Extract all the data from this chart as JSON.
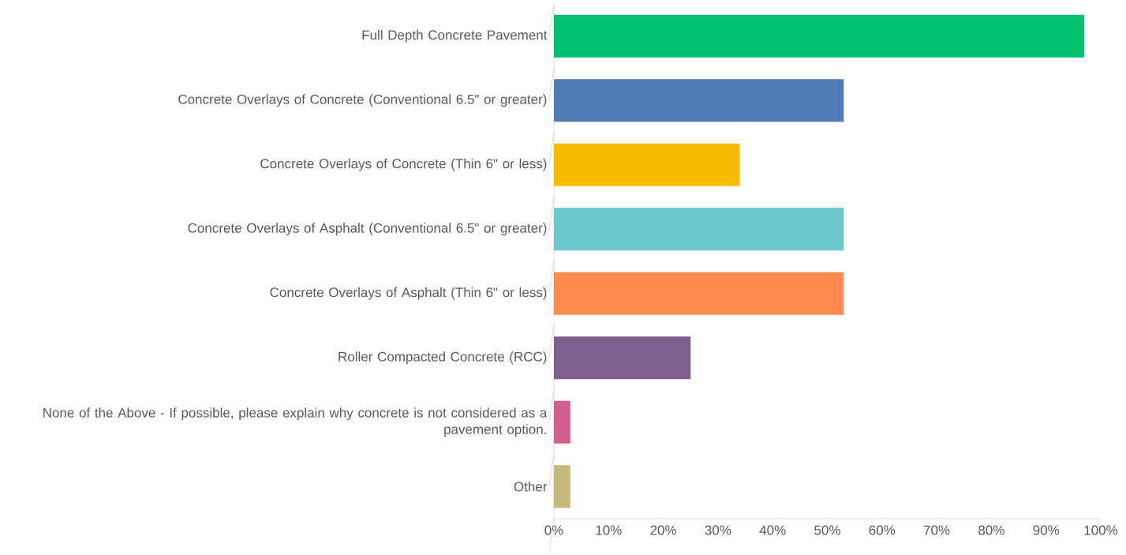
{
  "chart_data": {
    "type": "bar",
    "orientation": "horizontal",
    "categories": [
      "Full Depth Concrete Pavement",
      "Concrete Overlays of Concrete (Conventional 6.5\" or greater)",
      "Concrete Overlays of Concrete (Thin 6\" or less)",
      "Concrete Overlays of Asphalt (Conventional 6.5\" or greater)",
      "Concrete Overlays of Asphalt (Thin 6\" or less)",
      "Roller Compacted Concrete (RCC)",
      "None of the Above - If possible, please explain why concrete is not considered as a pavement option.",
      "Other"
    ],
    "values": [
      97,
      53,
      34,
      53,
      53,
      25,
      3,
      3
    ],
    "colors": [
      "#00bf6f",
      "#507cb6",
      "#f7bd00",
      "#6bc8cd",
      "#ff8b4f",
      "#7d5e8d",
      "#d25f90",
      "#c7b879"
    ],
    "xlim": [
      0,
      100
    ],
    "xticks": [
      {
        "value": 0,
        "label": "0%"
      },
      {
        "value": 10,
        "label": "10%"
      },
      {
        "value": 20,
        "label": "20%"
      },
      {
        "value": 30,
        "label": "30%"
      },
      {
        "value": 40,
        "label": "40%"
      },
      {
        "value": 50,
        "label": "50%"
      },
      {
        "value": 60,
        "label": "60%"
      },
      {
        "value": 70,
        "label": "70%"
      },
      {
        "value": 80,
        "label": "80%"
      },
      {
        "value": 90,
        "label": "90%"
      },
      {
        "value": 100,
        "label": "100%"
      }
    ],
    "grid": false
  }
}
